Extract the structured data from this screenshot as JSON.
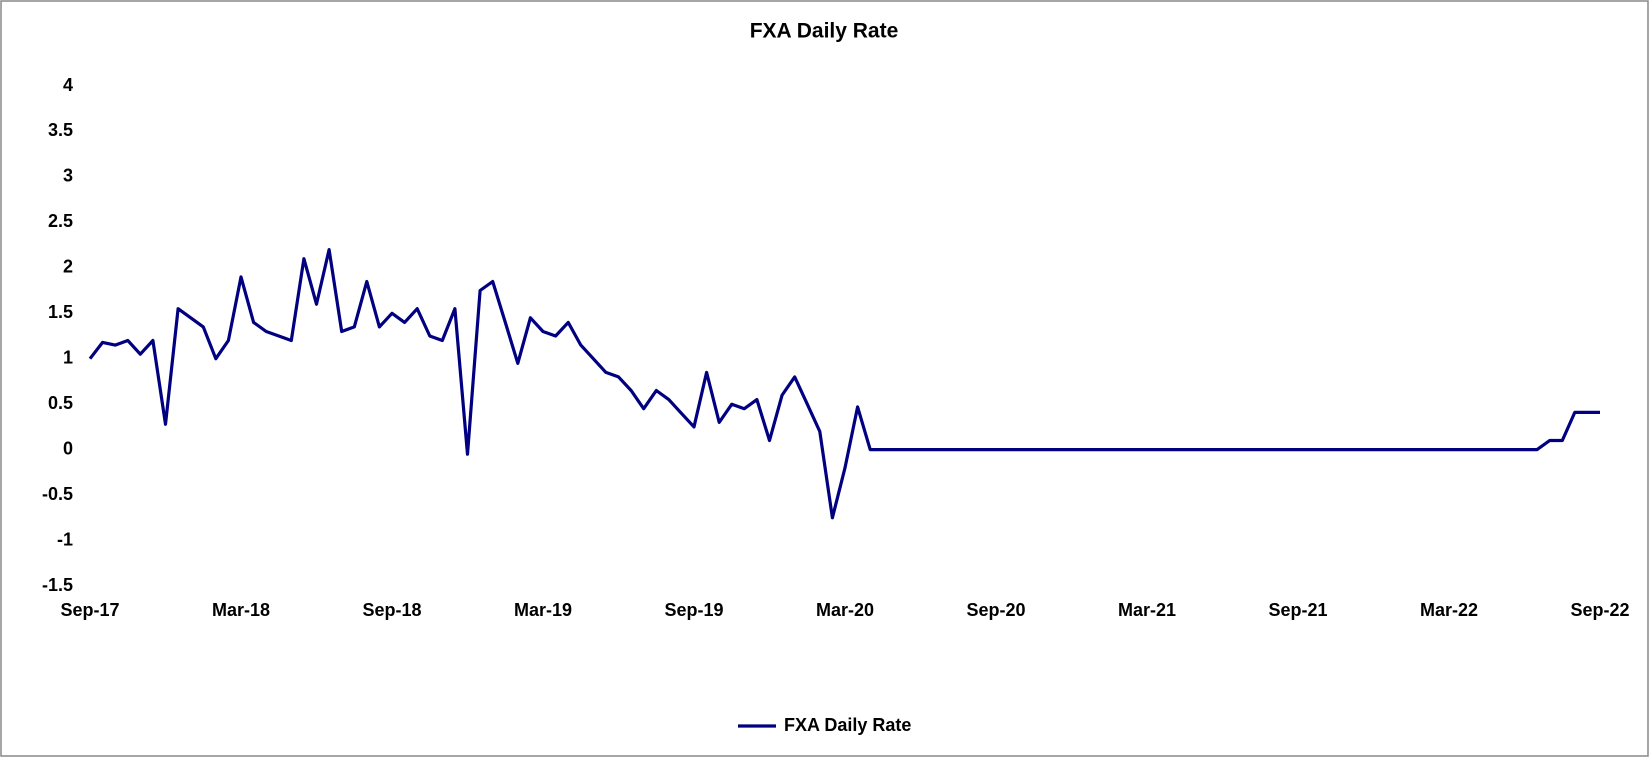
{
  "chart_data": {
    "type": "line",
    "title": "FXA Daily Rate",
    "categories": [
      "Sep-17",
      null,
      null,
      null,
      null,
      null,
      null,
      null,
      null,
      null,
      null,
      null,
      "Mar-18",
      null,
      null,
      null,
      null,
      null,
      null,
      null,
      null,
      null,
      null,
      null,
      "Sep-18",
      null,
      null,
      null,
      null,
      null,
      null,
      null,
      null,
      null,
      null,
      null,
      "Mar-19",
      null,
      null,
      null,
      null,
      null,
      null,
      null,
      null,
      null,
      null,
      null,
      "Sep-19",
      null,
      null,
      null,
      null,
      null,
      null,
      null,
      null,
      null,
      null,
      null,
      "Mar-20",
      null,
      null,
      null,
      null,
      null,
      null,
      null,
      null,
      null,
      null,
      null,
      "Sep-20",
      null,
      null,
      null,
      null,
      null,
      null,
      null,
      null,
      null,
      null,
      null,
      "Mar-21",
      null,
      null,
      null,
      null,
      null,
      null,
      null,
      null,
      null,
      null,
      null,
      "Sep-21",
      null,
      null,
      null,
      null,
      null,
      null,
      null,
      null,
      null,
      null,
      null,
      "Mar-22",
      null,
      null,
      null,
      null,
      null,
      null,
      null,
      null,
      null,
      null,
      null,
      "Sep-22"
    ],
    "series": [
      {
        "name": "FXA Daily Rate",
        "color": "#000080",
        "values": [
          1.0,
          1.18,
          1.15,
          1.2,
          1.05,
          1.2,
          0.28,
          1.55,
          1.45,
          1.35,
          1.0,
          1.2,
          1.9,
          1.4,
          1.3,
          1.25,
          1.2,
          2.1,
          1.6,
          2.2,
          1.3,
          1.35,
          1.85,
          1.35,
          1.5,
          1.4,
          1.55,
          1.25,
          1.2,
          1.55,
          -0.05,
          1.75,
          1.85,
          1.4,
          0.95,
          1.45,
          1.3,
          1.25,
          1.4,
          1.15,
          1.0,
          0.85,
          0.8,
          0.65,
          0.45,
          0.65,
          0.55,
          0.4,
          0.25,
          0.85,
          0.3,
          0.5,
          0.45,
          0.55,
          0.1,
          0.6,
          0.8,
          0.5,
          0.2,
          -0.75,
          -0.2,
          0.47,
          0,
          0,
          0,
          0,
          0,
          0,
          0,
          0,
          0,
          0,
          0,
          0,
          0,
          0,
          0,
          0,
          0,
          0,
          0,
          0,
          0,
          0,
          0,
          0,
          0,
          0,
          0,
          0,
          0,
          0,
          0,
          0,
          0,
          0,
          0,
          0,
          0,
          0,
          0,
          0,
          0,
          0,
          0,
          0,
          0,
          0,
          0,
          0,
          0,
          0,
          0,
          0,
          0,
          0,
          0.1,
          0.1,
          0.41,
          0.41,
          0.41
        ]
      }
    ],
    "ylim": [
      -1.5,
      4
    ],
    "yticks": [
      -1.5,
      -1,
      -0.5,
      0,
      0.5,
      1,
      1.5,
      2,
      2.5,
      3,
      3.5,
      4
    ],
    "grid": false,
    "legend": "bottom"
  }
}
